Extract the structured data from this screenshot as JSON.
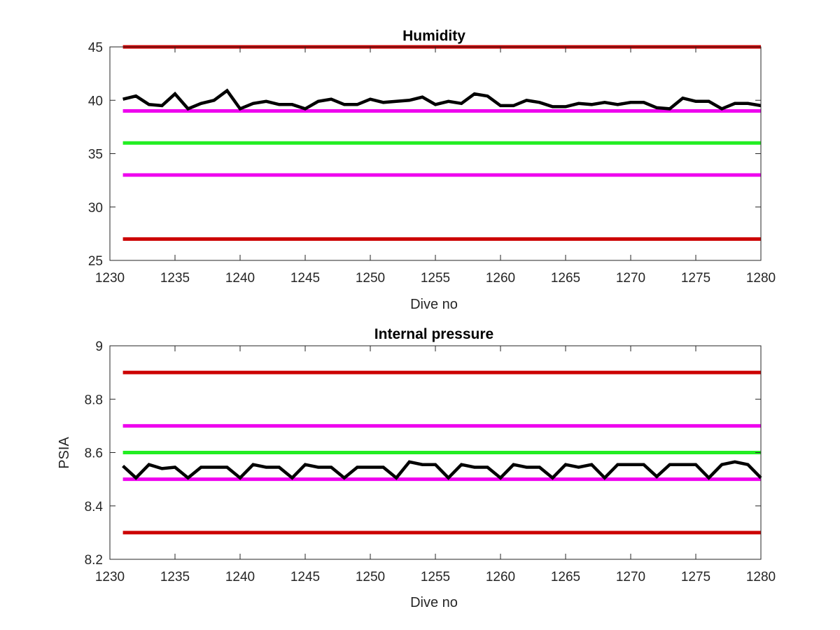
{
  "chart_data": [
    {
      "type": "line",
      "title": "Humidity",
      "xlabel": "Dive no",
      "ylabel": "",
      "xlim": [
        1230,
        1280
      ],
      "ylim": [
        25,
        45
      ],
      "xticks": [
        1230,
        1235,
        1240,
        1245,
        1250,
        1255,
        1260,
        1265,
        1270,
        1275,
        1280
      ],
      "yticks": [
        25,
        30,
        35,
        40,
        45
      ],
      "ytick_labels": [
        "25",
        "30",
        "35",
        "40",
        "45"
      ],
      "grid": false,
      "reference_lines": [
        {
          "y": 45,
          "color": "#cc0000"
        },
        {
          "y": 39,
          "color": "#ee00ee"
        },
        {
          "y": 36,
          "color": "#22ee22"
        },
        {
          "y": 33,
          "color": "#ee00ee"
        },
        {
          "y": 27,
          "color": "#cc0000"
        }
      ],
      "series": [
        {
          "color": "#000000",
          "x": [
            1231,
            1232,
            1233,
            1234,
            1235,
            1236,
            1237,
            1238,
            1239,
            1240,
            1241,
            1242,
            1243,
            1244,
            1245,
            1246,
            1247,
            1248,
            1249,
            1250,
            1251,
            1252,
            1253,
            1254,
            1255,
            1256,
            1257,
            1258,
            1259,
            1260,
            1261,
            1262,
            1263,
            1264,
            1265,
            1266,
            1267,
            1268,
            1269,
            1270,
            1271,
            1272,
            1273,
            1274,
            1275,
            1276,
            1277,
            1278,
            1279,
            1280
          ],
          "y": [
            40.1,
            40.4,
            39.6,
            39.5,
            40.6,
            39.2,
            39.7,
            40.0,
            40.9,
            39.2,
            39.7,
            39.9,
            39.6,
            39.6,
            39.2,
            39.9,
            40.1,
            39.6,
            39.6,
            40.1,
            39.8,
            39.9,
            40.0,
            40.3,
            39.6,
            39.9,
            39.7,
            40.6,
            40.4,
            39.5,
            39.5,
            40.0,
            39.8,
            39.4,
            39.4,
            39.7,
            39.6,
            39.8,
            39.6,
            39.8,
            39.8,
            39.3,
            39.2,
            40.2,
            39.9,
            39.9,
            39.2,
            39.7,
            39.7,
            39.5
          ]
        }
      ]
    },
    {
      "type": "line",
      "title": "Internal pressure",
      "xlabel": "Dive no",
      "ylabel": "PSIA",
      "xlim": [
        1230,
        1280
      ],
      "ylim": [
        8.2,
        9
      ],
      "xticks": [
        1230,
        1235,
        1240,
        1245,
        1250,
        1255,
        1260,
        1265,
        1270,
        1275,
        1280
      ],
      "yticks": [
        8.2,
        8.4,
        8.6,
        8.8,
        9
      ],
      "ytick_labels": [
        "8.2",
        "8.4",
        "8.6",
        "8.8",
        "9"
      ],
      "grid": false,
      "reference_lines": [
        {
          "y": 8.9,
          "color": "#cc0000"
        },
        {
          "y": 8.7,
          "color": "#ee00ee"
        },
        {
          "y": 8.6,
          "color": "#22ee22"
        },
        {
          "y": 8.5,
          "color": "#ee00ee"
        },
        {
          "y": 8.3,
          "color": "#cc0000"
        }
      ],
      "series": [
        {
          "color": "#000000",
          "x": [
            1231,
            1232,
            1233,
            1234,
            1235,
            1236,
            1237,
            1238,
            1239,
            1240,
            1241,
            1242,
            1243,
            1244,
            1245,
            1246,
            1247,
            1248,
            1249,
            1250,
            1251,
            1252,
            1253,
            1254,
            1255,
            1256,
            1257,
            1258,
            1259,
            1260,
            1261,
            1262,
            1263,
            1264,
            1265,
            1266,
            1267,
            1268,
            1269,
            1270,
            1271,
            1272,
            1273,
            1274,
            1275,
            1276,
            1277,
            1278,
            1279,
            1280
          ],
          "y": [
            8.55,
            8.505,
            8.555,
            8.54,
            8.545,
            8.505,
            8.545,
            8.545,
            8.545,
            8.505,
            8.555,
            8.545,
            8.545,
            8.505,
            8.555,
            8.545,
            8.545,
            8.505,
            8.545,
            8.545,
            8.545,
            8.505,
            8.565,
            8.555,
            8.555,
            8.505,
            8.555,
            8.545,
            8.545,
            8.505,
            8.555,
            8.545,
            8.545,
            8.505,
            8.555,
            8.545,
            8.555,
            8.505,
            8.555,
            8.555,
            8.555,
            8.51,
            8.555,
            8.555,
            8.555,
            8.505,
            8.555,
            8.565,
            8.555,
            8.505
          ]
        }
      ]
    }
  ]
}
